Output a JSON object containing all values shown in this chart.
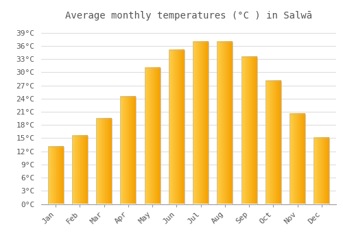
{
  "title": "Average monthly temperatures (°C ) in Salwā",
  "months": [
    "Jan",
    "Feb",
    "Mar",
    "Apr",
    "May",
    "Jun",
    "Jul",
    "Aug",
    "Sep",
    "Oct",
    "Nov",
    "Dec"
  ],
  "values": [
    13.0,
    15.5,
    19.5,
    24.5,
    31.0,
    35.0,
    37.0,
    37.0,
    33.5,
    28.0,
    20.5,
    15.0
  ],
  "bar_color_left": "#FFB300",
  "bar_color_right": "#FF9800",
  "bar_color_mid": "#FFC107",
  "background_color": "#FFFFFF",
  "grid_color": "#CCCCCC",
  "text_color": "#555555",
  "ylim": [
    0,
    41
  ],
  "yticks": [
    0,
    3,
    6,
    9,
    12,
    15,
    18,
    21,
    24,
    27,
    30,
    33,
    36,
    39
  ],
  "title_fontsize": 10,
  "tick_fontsize": 8,
  "font_family": "monospace"
}
